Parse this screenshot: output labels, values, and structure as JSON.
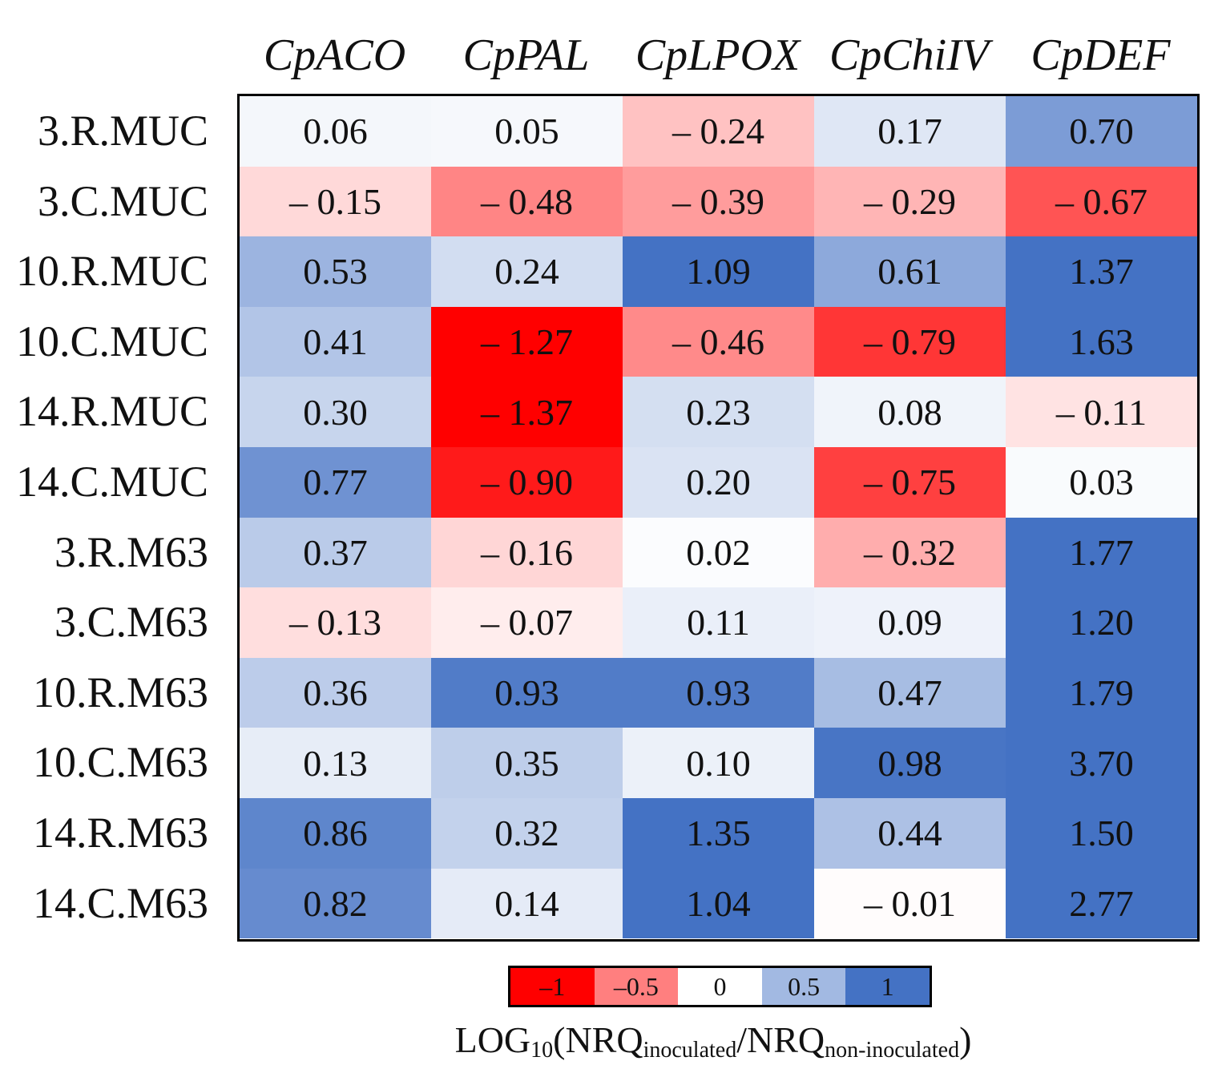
{
  "chart_data": {
    "type": "heatmap",
    "columns": [
      "CpACO",
      "CpPAL",
      "CpLPOX",
      "CpChiIV",
      "CpDEF"
    ],
    "rows": [
      "3.R.MUC",
      "3.C.MUC",
      "10.R.MUC",
      "10.C.MUC",
      "14.R.MUC",
      "14.C.MUC",
      "3.R.M63",
      "3.C.M63",
      "10.R.M63",
      "10.C.M63",
      "14.R.M63",
      "14.C.M63"
    ],
    "values": [
      [
        0.06,
        0.05,
        -0.24,
        0.17,
        0.7
      ],
      [
        -0.15,
        -0.48,
        -0.39,
        -0.29,
        -0.67
      ],
      [
        0.53,
        0.24,
        1.09,
        0.61,
        1.37
      ],
      [
        0.41,
        -1.27,
        -0.46,
        -0.79,
        1.63
      ],
      [
        0.3,
        -1.37,
        0.23,
        0.08,
        -0.11
      ],
      [
        0.77,
        -0.9,
        0.2,
        -0.75,
        0.03
      ],
      [
        0.37,
        -0.16,
        0.02,
        -0.32,
        1.77
      ],
      [
        -0.13,
        -0.07,
        0.11,
        0.09,
        1.2
      ],
      [
        0.36,
        0.93,
        0.93,
        0.47,
        1.79
      ],
      [
        0.13,
        0.35,
        0.1,
        0.98,
        3.7
      ],
      [
        0.86,
        0.32,
        1.35,
        0.44,
        1.5
      ],
      [
        0.82,
        0.14,
        1.04,
        -0.01,
        2.77
      ]
    ],
    "labels": [
      [
        "0.06",
        "0.05",
        "– 0.24",
        "0.17",
        "0.70"
      ],
      [
        "– 0.15",
        "– 0.48",
        "– 0.39",
        "– 0.29",
        "– 0.67"
      ],
      [
        "0.53",
        "0.24",
        "1.09",
        "0.61",
        "1.37"
      ],
      [
        "0.41",
        "– 1.27",
        "– 0.46",
        "– 0.79",
        "1.63"
      ],
      [
        "0.30",
        "– 1.37",
        "0.23",
        "0.08",
        "– 0.11"
      ],
      [
        "0.77",
        "– 0.90",
        "0.20",
        "– 0.75",
        "0.03"
      ],
      [
        "0.37",
        "– 0.16",
        "0.02",
        "– 0.32",
        "1.77"
      ],
      [
        "– 0.13",
        "– 0.07",
        "0.11",
        "0.09",
        "1.20"
      ],
      [
        "0.36",
        "0.93",
        "0.93",
        "0.47",
        "1.79"
      ],
      [
        "0.13",
        "0.35",
        "0.10",
        "0.98",
        "3.70"
      ],
      [
        "0.86",
        "0.32",
        "1.35",
        "0.44",
        "1.50"
      ],
      [
        "0.82",
        "0.14",
        "1.04",
        "– 0.01",
        "2.77"
      ]
    ],
    "color_scale": {
      "min": -1,
      "max": 1,
      "low_color": "#ff0000",
      "mid_color": "#ffffff",
      "high_color": "#4472c4"
    },
    "legend": {
      "ticks": [
        "–1",
        "–0.5",
        "0",
        "0.5",
        "1"
      ],
      "colors": [
        "#ff0000",
        "#ff7f7f",
        "#ffffff",
        "#a2b9e2",
        "#4472c4"
      ],
      "title_main": "LOG",
      "title_base": "10",
      "title_open": "(NRQ",
      "title_sub1": "inoculated",
      "title_mid": "/NRQ",
      "title_sub2": "non-inoculated",
      "title_close": ")"
    }
  }
}
